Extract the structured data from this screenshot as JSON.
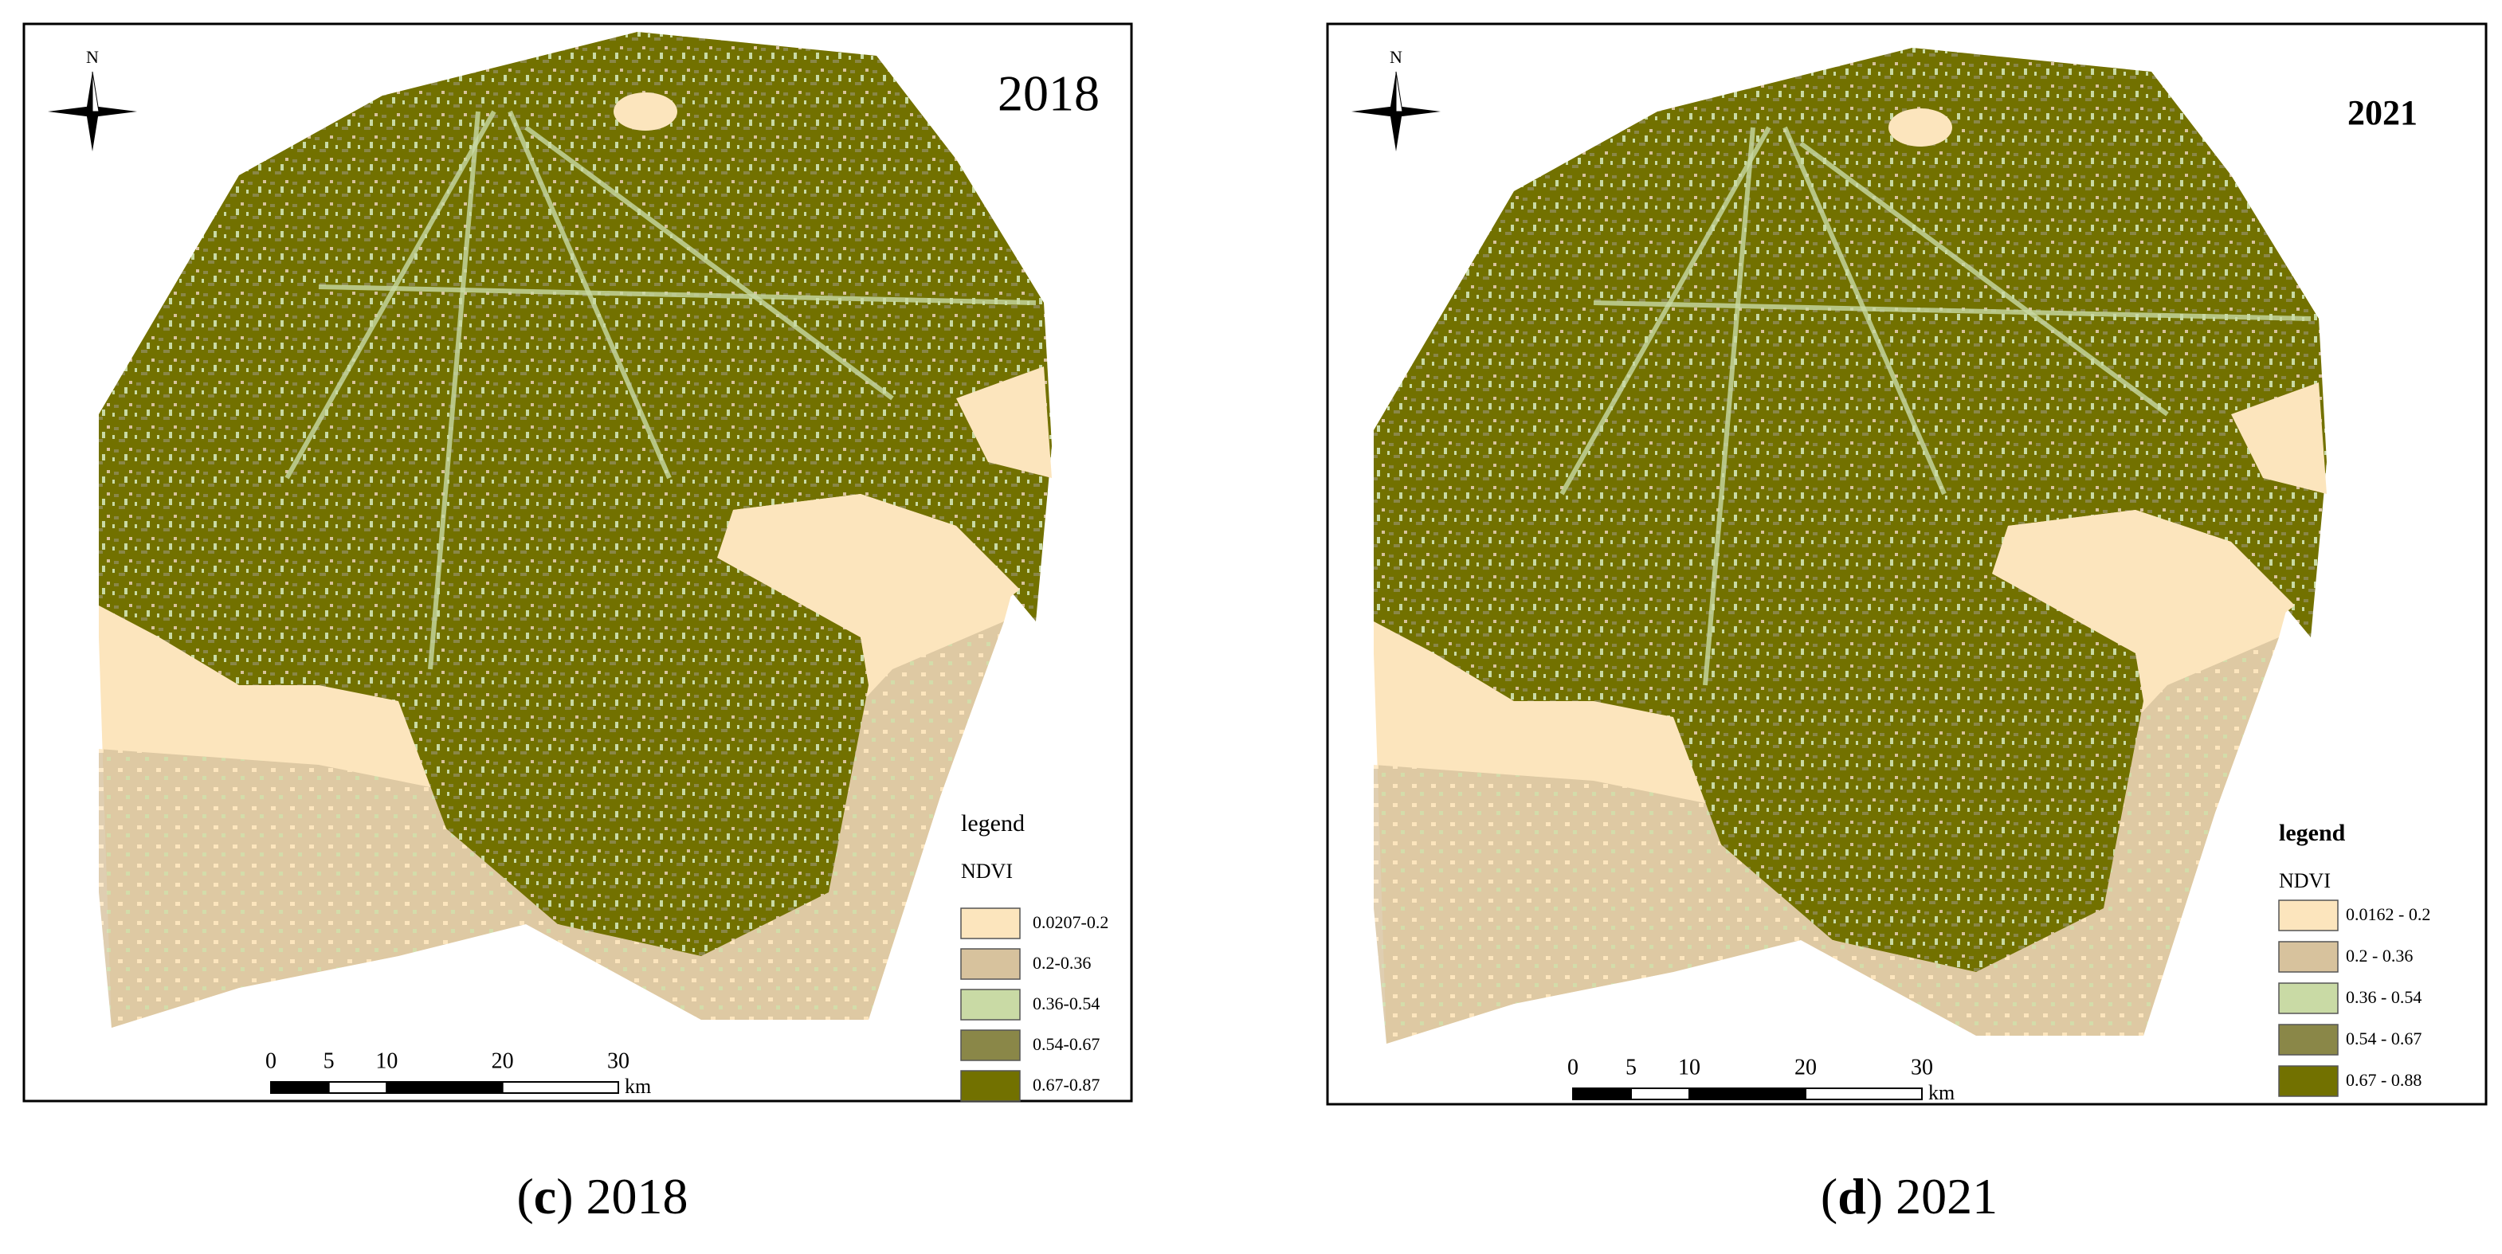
{
  "panels": [
    {
      "title": "2018",
      "north": "N",
      "legend": {
        "title": "legend",
        "subtitle": "NDVI",
        "items": [
          {
            "label": "0.0207-0.2",
            "color": "#fce5bd"
          },
          {
            "label": "0.2-0.36",
            "color": "#d7c29d"
          },
          {
            "label": "0.36-0.54",
            "color": "#c9daa5"
          },
          {
            "label": "0.54-0.67",
            "color": "#8a8748"
          },
          {
            "label": "0.67-0.87",
            "color": "#727100"
          }
        ]
      },
      "scale": {
        "ticks": [
          0,
          5,
          10,
          20,
          30
        ],
        "unit": "km"
      },
      "caption": {
        "open": "(",
        "letter": "c",
        "rest": ") 2018"
      }
    },
    {
      "title": "2021",
      "north": "N",
      "legend": {
        "title": "legend",
        "subtitle": "NDVI",
        "items": [
          {
            "label": "0.0162 - 0.2",
            "color": "#fce5bd"
          },
          {
            "label": "0.2 - 0.36",
            "color": "#d7c29d"
          },
          {
            "label": "0.36 - 0.54",
            "color": "#c9daa5"
          },
          {
            "label": "0.54 - 0.67",
            "color": "#8a8748"
          },
          {
            "label": "0.67 - 0.88",
            "color": "#727100"
          }
        ]
      },
      "scale": {
        "ticks": [
          0,
          5,
          10,
          20,
          30
        ],
        "unit": "km"
      },
      "caption": {
        "open": "(",
        "letter": "d",
        "rest": ") 2021"
      }
    }
  ]
}
